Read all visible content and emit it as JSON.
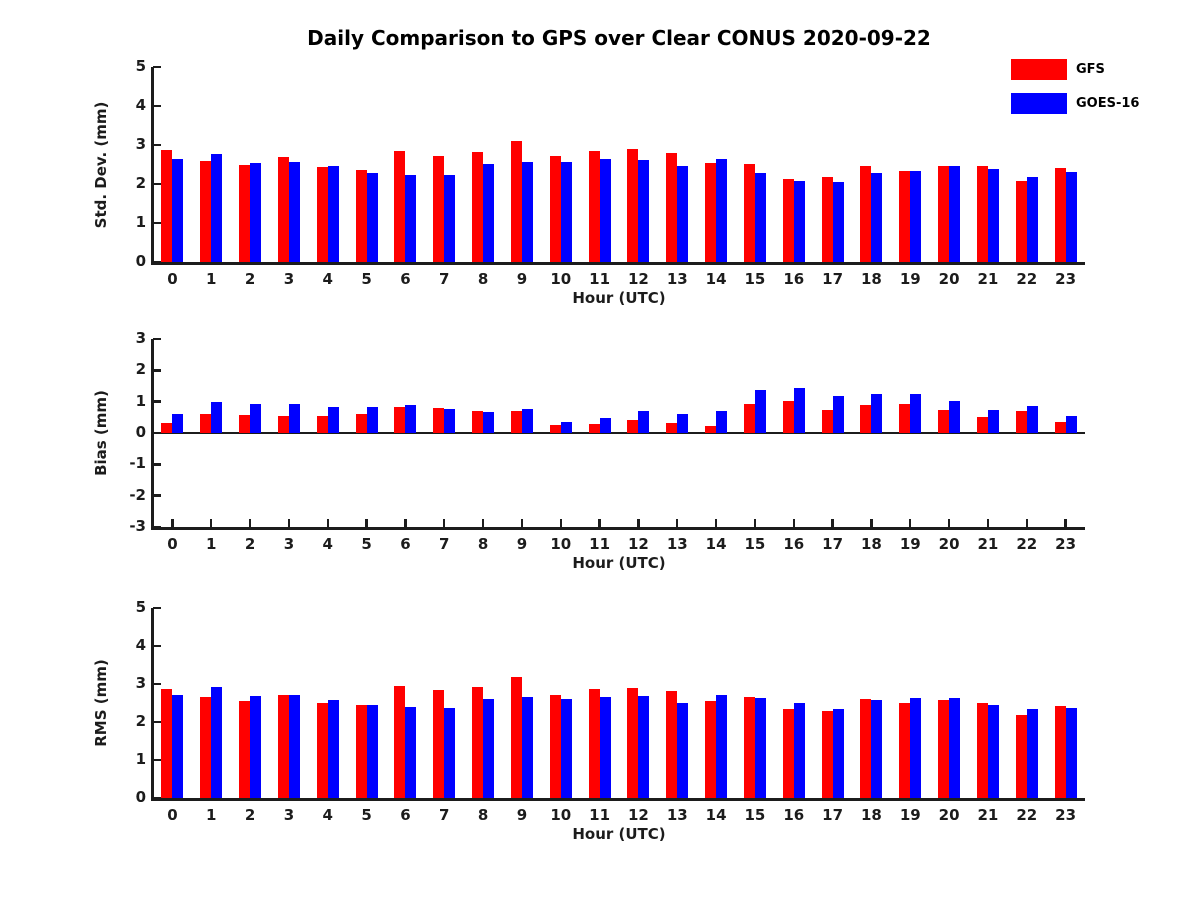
{
  "title": "Daily Comparison to GPS over Clear CONUS 2020-09-22",
  "legend": {
    "items": [
      {
        "label": "GFS",
        "color": "#ff0000"
      },
      {
        "label": "GOES-16",
        "color": "#0000ff"
      }
    ]
  },
  "colors": {
    "gfs": "#ff0000",
    "goes16": "#0000ff",
    "axis": "#1c1c1c"
  },
  "chart_data": [
    {
      "type": "bar",
      "name": "std-dev",
      "ylabel": "Std. Dev. (mm)",
      "xlabel": "Hour (UTC)",
      "ylim": [
        0,
        5
      ],
      "yticks": [
        0,
        1,
        2,
        3,
        4,
        5
      ],
      "grid": false,
      "legend_position": "top-right-outside",
      "categories": [
        0,
        1,
        2,
        3,
        4,
        5,
        6,
        7,
        8,
        9,
        10,
        11,
        12,
        13,
        14,
        15,
        16,
        17,
        18,
        19,
        20,
        21,
        22,
        23
      ],
      "series": [
        {
          "name": "GFS",
          "color": "#ff0000",
          "values": [
            2.88,
            2.6,
            2.5,
            2.68,
            2.44,
            2.36,
            2.85,
            2.73,
            2.83,
            3.1,
            2.73,
            2.85,
            2.9,
            2.8,
            2.55,
            2.52,
            2.12,
            2.18,
            2.45,
            2.33,
            2.46,
            2.45,
            2.07,
            2.42
          ]
        },
        {
          "name": "GOES-16",
          "color": "#0000ff",
          "values": [
            2.65,
            2.78,
            2.55,
            2.57,
            2.46,
            2.28,
            2.24,
            2.24,
            2.52,
            2.57,
            2.57,
            2.63,
            2.62,
            2.47,
            2.63,
            2.28,
            2.08,
            2.05,
            2.27,
            2.33,
            2.47,
            2.38,
            2.18,
            2.3
          ]
        }
      ]
    },
    {
      "type": "bar",
      "name": "bias",
      "ylabel": "Bias (mm)",
      "xlabel": "Hour (UTC)",
      "ylim": [
        -3,
        3
      ],
      "yticks": [
        -3,
        -2,
        -1,
        0,
        1,
        2,
        3
      ],
      "grid": false,
      "categories": [
        0,
        1,
        2,
        3,
        4,
        5,
        6,
        7,
        8,
        9,
        10,
        11,
        12,
        13,
        14,
        15,
        16,
        17,
        18,
        19,
        20,
        21,
        22,
        23
      ],
      "series": [
        {
          "name": "GFS",
          "color": "#ff0000",
          "values": [
            0.33,
            0.62,
            0.58,
            0.55,
            0.55,
            0.6,
            0.82,
            0.8,
            0.7,
            0.71,
            0.26,
            0.28,
            0.4,
            0.33,
            0.23,
            0.94,
            1.01,
            0.72,
            0.89,
            0.94,
            0.74,
            0.5,
            0.69,
            0.35
          ]
        },
        {
          "name": "GOES-16",
          "color": "#0000ff",
          "values": [
            0.61,
            1.0,
            0.94,
            0.91,
            0.84,
            0.84,
            0.9,
            0.78,
            0.68,
            0.78,
            0.36,
            0.47,
            0.71,
            0.6,
            0.69,
            1.38,
            1.45,
            1.17,
            1.26,
            1.26,
            1.01,
            0.74,
            0.87,
            0.55
          ]
        }
      ]
    },
    {
      "type": "bar",
      "name": "rms",
      "ylabel": "RMS (mm)",
      "xlabel": "Hour (UTC)",
      "ylim": [
        0,
        5
      ],
      "yticks": [
        0,
        1,
        2,
        3,
        4,
        5
      ],
      "grid": false,
      "categories": [
        0,
        1,
        2,
        3,
        4,
        5,
        6,
        7,
        8,
        9,
        10,
        11,
        12,
        13,
        14,
        15,
        16,
        17,
        18,
        19,
        20,
        21,
        22,
        23
      ],
      "series": [
        {
          "name": "GFS",
          "color": "#ff0000",
          "values": [
            2.88,
            2.65,
            2.55,
            2.72,
            2.5,
            2.45,
            2.95,
            2.84,
            2.91,
            3.18,
            2.72,
            2.86,
            2.89,
            2.82,
            2.54,
            2.67,
            2.34,
            2.28,
            2.61,
            2.5,
            2.57,
            2.5,
            2.18,
            2.43
          ]
        },
        {
          "name": "GOES-16",
          "color": "#0000ff",
          "values": [
            2.72,
            2.92,
            2.69,
            2.72,
            2.59,
            2.44,
            2.4,
            2.37,
            2.6,
            2.67,
            2.61,
            2.65,
            2.68,
            2.5,
            2.72,
            2.64,
            2.5,
            2.34,
            2.57,
            2.63,
            2.63,
            2.46,
            2.33,
            2.36
          ]
        }
      ]
    }
  ]
}
